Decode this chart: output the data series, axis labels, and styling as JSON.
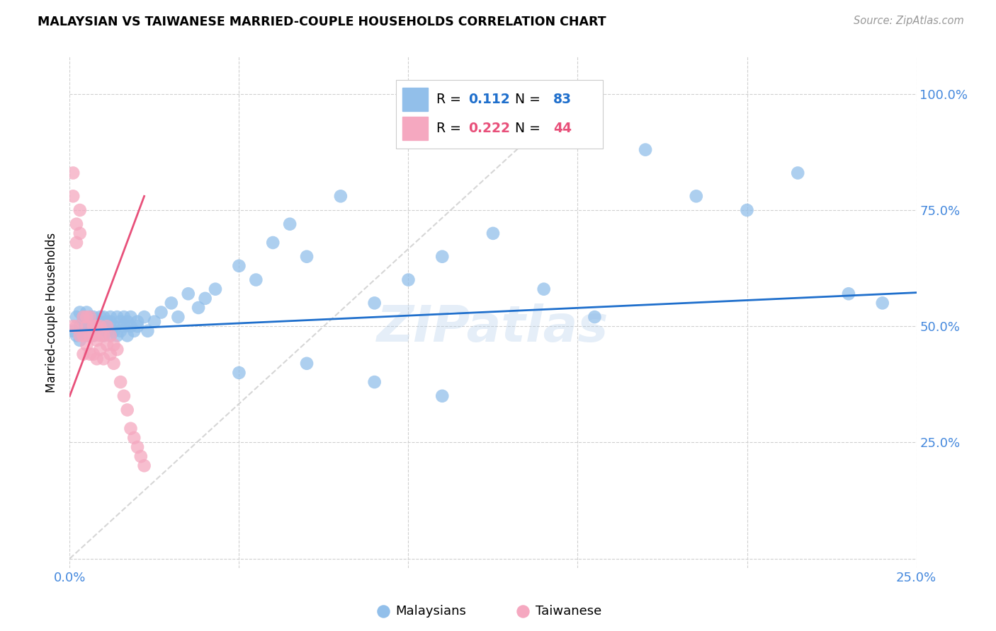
{
  "title": "MALAYSIAN VS TAIWANESE MARRIED-COUPLE HOUSEHOLDS CORRELATION CHART",
  "source": "Source: ZipAtlas.com",
  "ylabel": "Married-couple Households",
  "xlim": [
    0.0,
    0.25
  ],
  "ylim": [
    -0.02,
    1.08
  ],
  "y_ticks": [
    0.0,
    0.25,
    0.5,
    0.75,
    1.0
  ],
  "y_tick_labels": [
    "",
    "25.0%",
    "50.0%",
    "75.0%",
    "100.0%"
  ],
  "x_ticks": [
    0.0,
    0.05,
    0.1,
    0.15,
    0.2,
    0.25
  ],
  "x_tick_labels": [
    "0.0%",
    "",
    "",
    "",
    "",
    "25.0%"
  ],
  "malaysian_R": 0.112,
  "malaysian_N": 83,
  "taiwanese_R": 0.222,
  "taiwanese_N": 44,
  "blue_color": "#92bfea",
  "pink_color": "#f5a8c0",
  "blue_line_color": "#1f6fcc",
  "pink_line_color": "#e8507a",
  "grid_color": "#d0d0d0",
  "ref_line_color": "#cccccc",
  "watermark": "ZIPatlas",
  "tick_color": "#4488dd",
  "mal_x": [
    0.001,
    0.002,
    0.002,
    0.003,
    0.003,
    0.003,
    0.004,
    0.004,
    0.004,
    0.005,
    0.005,
    0.005,
    0.005,
    0.006,
    0.006,
    0.006,
    0.006,
    0.007,
    0.007,
    0.007,
    0.007,
    0.008,
    0.008,
    0.008,
    0.009,
    0.009,
    0.009,
    0.01,
    0.01,
    0.01,
    0.011,
    0.011,
    0.011,
    0.012,
    0.012,
    0.012,
    0.013,
    0.013,
    0.014,
    0.014,
    0.015,
    0.015,
    0.016,
    0.016,
    0.017,
    0.017,
    0.018,
    0.018,
    0.019,
    0.02,
    0.02,
    0.022,
    0.023,
    0.025,
    0.027,
    0.03,
    0.032,
    0.035,
    0.038,
    0.04,
    0.043,
    0.05,
    0.055,
    0.06,
    0.065,
    0.07,
    0.08,
    0.09,
    0.1,
    0.11,
    0.125,
    0.14,
    0.155,
    0.17,
    0.185,
    0.2,
    0.215,
    0.23,
    0.24,
    0.05,
    0.07,
    0.09,
    0.11
  ],
  "mal_y": [
    0.49,
    0.52,
    0.48,
    0.53,
    0.5,
    0.47,
    0.51,
    0.49,
    0.52,
    0.5,
    0.48,
    0.51,
    0.53,
    0.5,
    0.48,
    0.52,
    0.49,
    0.51,
    0.5,
    0.48,
    0.52,
    0.5,
    0.49,
    0.51,
    0.52,
    0.49,
    0.51,
    0.5,
    0.48,
    0.52,
    0.51,
    0.49,
    0.5,
    0.52,
    0.48,
    0.51,
    0.5,
    0.49,
    0.52,
    0.48,
    0.51,
    0.49,
    0.5,
    0.52,
    0.51,
    0.48,
    0.5,
    0.52,
    0.49,
    0.51,
    0.5,
    0.52,
    0.49,
    0.51,
    0.53,
    0.55,
    0.52,
    0.57,
    0.54,
    0.56,
    0.58,
    0.63,
    0.6,
    0.68,
    0.72,
    0.65,
    0.78,
    0.55,
    0.6,
    0.65,
    0.7,
    0.58,
    0.52,
    0.88,
    0.78,
    0.75,
    0.83,
    0.57,
    0.55,
    0.4,
    0.42,
    0.38,
    0.35
  ],
  "tai_x": [
    0.001,
    0.001,
    0.001,
    0.002,
    0.002,
    0.002,
    0.003,
    0.003,
    0.003,
    0.004,
    0.004,
    0.004,
    0.005,
    0.005,
    0.005,
    0.006,
    0.006,
    0.006,
    0.007,
    0.007,
    0.007,
    0.008,
    0.008,
    0.008,
    0.009,
    0.009,
    0.009,
    0.01,
    0.01,
    0.011,
    0.011,
    0.012,
    0.012,
    0.013,
    0.013,
    0.014,
    0.015,
    0.016,
    0.017,
    0.018,
    0.019,
    0.02,
    0.021,
    0.022
  ],
  "tai_y": [
    0.83,
    0.78,
    0.5,
    0.72,
    0.68,
    0.5,
    0.75,
    0.7,
    0.48,
    0.52,
    0.48,
    0.44,
    0.52,
    0.5,
    0.46,
    0.48,
    0.52,
    0.44,
    0.5,
    0.48,
    0.44,
    0.5,
    0.47,
    0.43,
    0.48,
    0.45,
    0.5,
    0.48,
    0.43,
    0.46,
    0.5,
    0.44,
    0.48,
    0.46,
    0.42,
    0.45,
    0.38,
    0.35,
    0.32,
    0.28,
    0.26,
    0.24,
    0.22,
    0.2
  ]
}
